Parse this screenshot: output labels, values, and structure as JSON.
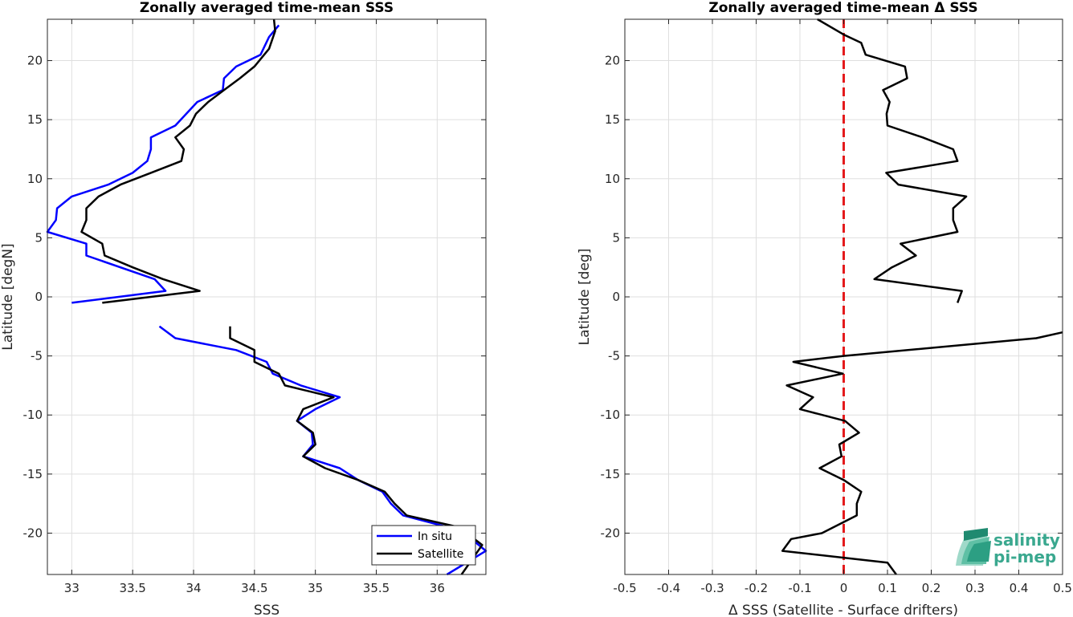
{
  "chart_data": [
    {
      "type": "line",
      "title": "Zonally averaged time-mean SSS",
      "xlabel": "SSS",
      "ylabel": "Latitude [degN]",
      "xlim": [
        32.8,
        36.4
      ],
      "ylim": [
        -23.5,
        23.5
      ],
      "xticks": [
        33,
        33.5,
        34,
        34.5,
        35,
        35.5,
        36
      ],
      "xticklabels": [
        "33",
        "33.5",
        "34",
        "34.5",
        "35",
        "35.5",
        "36"
      ],
      "yticks": [
        -20,
        -15,
        -10,
        -5,
        0,
        5,
        10,
        15,
        20
      ],
      "yticklabels": [
        "-20",
        "-15",
        "-10",
        "-5",
        "0",
        "5",
        "10",
        "15",
        "20"
      ],
      "grid": true,
      "legend": "bottom-right",
      "series": [
        {
          "name": "In situ",
          "color": "#0000ff",
          "segments": [
            [
              [
                34.7,
                23.0
              ],
              [
                34.62,
                22.0
              ],
              [
                34.55,
                20.5
              ],
              [
                34.35,
                19.5
              ],
              [
                34.25,
                18.5
              ],
              [
                34.24,
                17.5
              ],
              [
                34.03,
                16.5
              ],
              [
                33.85,
                14.5
              ],
              [
                33.65,
                13.5
              ],
              [
                33.65,
                12.5
              ],
              [
                33.62,
                11.5
              ],
              [
                33.5,
                10.5
              ],
              [
                33.3,
                9.5
              ],
              [
                33.0,
                8.5
              ],
              [
                32.88,
                7.5
              ],
              [
                32.87,
                6.5
              ],
              [
                32.8,
                5.5
              ],
              [
                33.12,
                4.5
              ],
              [
                33.12,
                3.5
              ],
              [
                33.68,
                1.5
              ],
              [
                33.77,
                0.5
              ],
              [
                33.0,
                -0.5
              ]
            ],
            [
              [
                33.72,
                -2.5
              ],
              [
                33.85,
                -3.5
              ],
              [
                34.35,
                -4.5
              ],
              [
                34.6,
                -5.5
              ],
              [
                34.65,
                -6.5
              ],
              [
                34.88,
                -7.5
              ],
              [
                35.2,
                -8.5
              ],
              [
                35.0,
                -9.5
              ],
              [
                34.85,
                -10.5
              ],
              [
                34.97,
                -11.5
              ],
              [
                34.98,
                -12.5
              ],
              [
                34.9,
                -13.5
              ],
              [
                35.2,
                -14.5
              ],
              [
                35.35,
                -15.5
              ],
              [
                35.55,
                -16.5
              ],
              [
                35.62,
                -17.5
              ],
              [
                35.72,
                -18.5
              ],
              [
                36.2,
                -19.8
              ],
              [
                36.4,
                -21.5
              ],
              [
                36.08,
                -23.5
              ]
            ]
          ]
        },
        {
          "name": "Satellite",
          "color": "#000000",
          "segments": [
            [
              [
                34.66,
                23.5
              ],
              [
                34.67,
                22.5
              ],
              [
                34.62,
                21.0
              ],
              [
                34.5,
                19.5
              ],
              [
                34.38,
                18.5
              ],
              [
                34.25,
                17.5
              ],
              [
                34.12,
                16.5
              ],
              [
                34.02,
                15.5
              ],
              [
                33.97,
                14.5
              ],
              [
                33.85,
                13.5
              ],
              [
                33.92,
                12.5
              ],
              [
                33.9,
                11.5
              ],
              [
                33.65,
                10.5
              ],
              [
                33.4,
                9.5
              ],
              [
                33.22,
                8.5
              ],
              [
                33.12,
                7.5
              ],
              [
                33.12,
                6.5
              ],
              [
                33.08,
                5.5
              ],
              [
                33.25,
                4.5
              ],
              [
                33.27,
                3.5
              ],
              [
                33.5,
                2.5
              ],
              [
                33.75,
                1.5
              ],
              [
                34.05,
                0.5
              ],
              [
                33.25,
                -0.5
              ]
            ],
            [
              [
                34.3,
                -2.5
              ],
              [
                34.3,
                -3.5
              ],
              [
                34.5,
                -4.5
              ],
              [
                34.5,
                -5.5
              ],
              [
                34.7,
                -6.5
              ],
              [
                34.75,
                -7.5
              ],
              [
                35.15,
                -8.5
              ],
              [
                34.9,
                -9.5
              ],
              [
                34.85,
                -10.5
              ],
              [
                34.98,
                -11.5
              ],
              [
                35.0,
                -12.5
              ],
              [
                34.9,
                -13.5
              ],
              [
                35.08,
                -14.5
              ],
              [
                35.35,
                -15.5
              ],
              [
                35.57,
                -16.5
              ],
              [
                35.65,
                -17.5
              ],
              [
                35.75,
                -18.5
              ],
              [
                36.18,
                -19.5
              ],
              [
                36.37,
                -21.0
              ],
              [
                36.2,
                -23.5
              ]
            ]
          ]
        }
      ]
    },
    {
      "type": "line",
      "title": "Zonally averaged time-mean Δ SSS",
      "xlabel": "Δ SSS (Satellite - Surface drifters)",
      "ylabel": "Latitude [deg]",
      "xlim": [
        -0.5,
        0.5
      ],
      "ylim": [
        -23.5,
        23.5
      ],
      "xticks": [
        -0.5,
        -0.4,
        -0.3,
        -0.2,
        -0.1,
        0,
        0.1,
        0.2,
        0.3,
        0.4,
        0.5
      ],
      "xticklabels": [
        "-0.5",
        "-0.4",
        "-0.3",
        "-0.2",
        "-0.1",
        "0",
        "0.1",
        "0.2",
        "0.3",
        "0.4",
        "0.5"
      ],
      "yticks": [
        -20,
        -15,
        -10,
        -5,
        0,
        5,
        10,
        15,
        20
      ],
      "yticklabels": [
        "-20",
        "-15",
        "-10",
        "-5",
        "0",
        "5",
        "10",
        "15",
        "20"
      ],
      "grid": true,
      "reference_line": {
        "x": 0,
        "color": "#e41a1c",
        "style": "dashed"
      },
      "series": [
        {
          "color": "#000000",
          "segments": [
            [
              [
                -0.06,
                23.5
              ],
              [
                0.0,
                22.2
              ],
              [
                0.04,
                21.5
              ],
              [
                0.05,
                20.5
              ],
              [
                0.14,
                19.5
              ],
              [
                0.145,
                18.5
              ],
              [
                0.09,
                17.5
              ],
              [
                0.105,
                16.5
              ],
              [
                0.098,
                15.5
              ],
              [
                0.1,
                14.5
              ],
              [
                0.18,
                13.5
              ],
              [
                0.25,
                12.5
              ],
              [
                0.26,
                11.5
              ],
              [
                0.097,
                10.5
              ],
              [
                0.125,
                9.5
              ],
              [
                0.28,
                8.5
              ],
              [
                0.25,
                7.5
              ],
              [
                0.25,
                6.5
              ],
              [
                0.26,
                5.5
              ],
              [
                0.13,
                4.5
              ],
              [
                0.165,
                3.5
              ],
              [
                0.11,
                2.5
              ],
              [
                0.07,
                1.5
              ],
              [
                0.27,
                0.5
              ],
              [
                0.26,
                -0.5
              ]
            ],
            [
              [
                0.5,
                -3.0
              ],
              [
                0.44,
                -3.5
              ],
              [
                0.0,
                -5.0
              ],
              [
                -0.115,
                -5.5
              ],
              [
                -0.002,
                -6.5
              ],
              [
                -0.13,
                -7.5
              ],
              [
                -0.07,
                -8.5
              ],
              [
                -0.1,
                -9.5
              ],
              [
                0.003,
                -10.5
              ],
              [
                0.035,
                -11.5
              ],
              [
                -0.01,
                -12.5
              ],
              [
                -0.005,
                -13.5
              ],
              [
                -0.055,
                -14.5
              ],
              [
                0.0,
                -15.5
              ],
              [
                0.04,
                -16.5
              ],
              [
                0.03,
                -17.5
              ],
              [
                0.03,
                -18.5
              ],
              [
                -0.05,
                -20.0
              ],
              [
                -0.12,
                -20.5
              ],
              [
                -0.14,
                -21.5
              ],
              [
                0.1,
                -22.5
              ],
              [
                0.12,
                -23.5
              ]
            ]
          ]
        }
      ]
    }
  ],
  "legend": {
    "entries": [
      "In situ",
      "Satellite"
    ]
  },
  "logo": {
    "line1": "salinity",
    "line2": "pi-mep",
    "color": "#3aa88f"
  }
}
